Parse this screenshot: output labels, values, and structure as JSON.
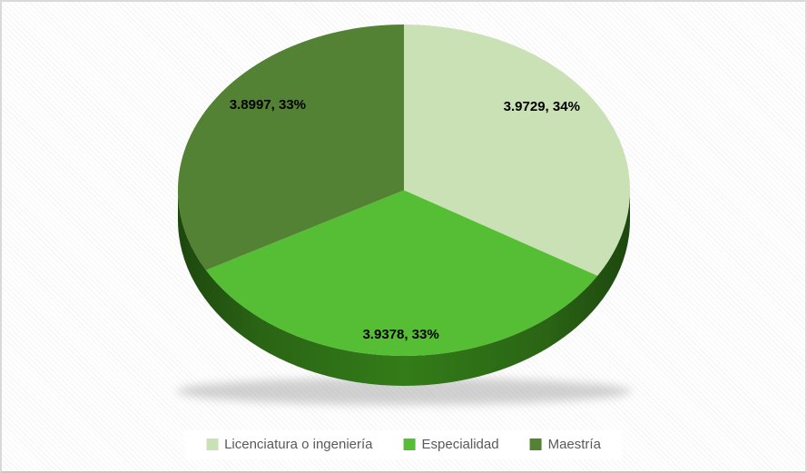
{
  "chart_data": {
    "type": "pie",
    "style": "3d-pie",
    "title": "",
    "categories": [
      "Licenciatura o ingeniería",
      "Especialidad",
      "Maestría"
    ],
    "values": [
      3.9729,
      3.9378,
      3.8997
    ],
    "percentages": [
      34,
      33,
      33
    ],
    "data_labels": [
      "3.9729, 34%",
      "3.9378, 33%",
      "3.8997, 33%"
    ],
    "slice_colors": [
      "#c9e1b5",
      "#56be35",
      "#548235"
    ],
    "legend_position": "bottom",
    "legend_entries": [
      "Licenciatura o ingeniería",
      "Especialidad",
      "Maestría"
    ]
  },
  "colors": {
    "rim_center": "#337c19",
    "rim_mid": "#2a6414",
    "rim_edge": "#1d470e",
    "shadow": "#9a9a9a",
    "label_text": "#000000",
    "legend_text": "#595959",
    "legend_background": "#ffffff",
    "frame_border": "#d9d9d9",
    "background": "#ffffff"
  }
}
